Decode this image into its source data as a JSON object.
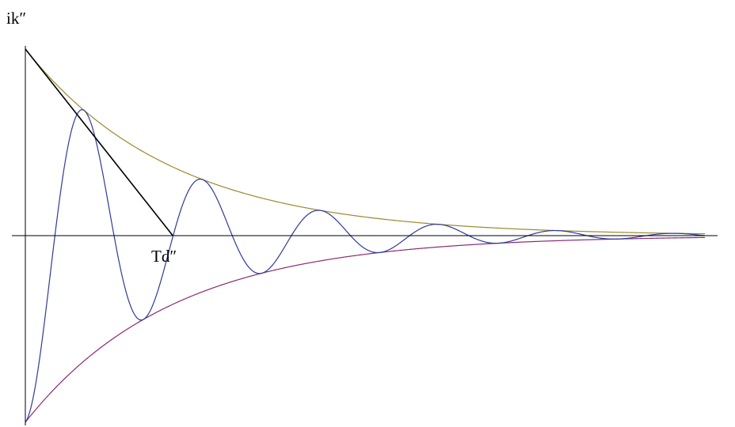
{
  "chart_data": {
    "type": "line",
    "title": "",
    "ylabel": "ik″",
    "xlabel": "",
    "annotation": "Td″",
    "x_range": [
      0,
      10
    ],
    "y_range": [
      -1,
      1
    ],
    "time_constant": 2.17,
    "oscillation_period": 1.74,
    "tangent": {
      "x": [
        0,
        2.17
      ],
      "y": [
        1,
        0
      ]
    },
    "series": [
      {
        "key": "upper_envelope",
        "color": "#9a8a2c",
        "x": [
          0,
          0.5,
          1,
          1.5,
          2,
          2.5,
          3,
          3.5,
          4,
          4.5,
          5,
          5.5,
          6,
          6.5,
          7,
          7.5,
          8,
          8.5,
          9,
          9.5,
          10
        ],
        "y": [
          1.0,
          0.79,
          0.63,
          0.5,
          0.4,
          0.32,
          0.25,
          0.2,
          0.16,
          0.13,
          0.1,
          0.08,
          0.06,
          0.05,
          0.04,
          0.03,
          0.025,
          0.02,
          0.016,
          0.013,
          0.01
        ]
      },
      {
        "key": "lower_envelope",
        "color": "#8b2a6e",
        "x": [
          0,
          0.5,
          1,
          1.5,
          2,
          2.5,
          3,
          3.5,
          4,
          4.5,
          5,
          5.5,
          6,
          6.5,
          7,
          7.5,
          8,
          8.5,
          9,
          9.5,
          10
        ],
        "y": [
          -1.0,
          -0.79,
          -0.63,
          -0.5,
          -0.4,
          -0.32,
          -0.25,
          -0.2,
          -0.16,
          -0.13,
          -0.1,
          -0.08,
          -0.06,
          -0.05,
          -0.04,
          -0.03,
          -0.025,
          -0.02,
          -0.016,
          -0.013,
          -0.01
        ]
      },
      {
        "key": "oscillation",
        "color": "#2f3a9c",
        "x": [
          0,
          0.45,
          0.98,
          1.45,
          1.88,
          2.45,
          2.95,
          3.5,
          4.02,
          4.5,
          5.08,
          5.55,
          6.02,
          6.45,
          6.95,
          7.5,
          7.95,
          8.45,
          8.95,
          9.45,
          10
        ],
        "y": [
          -1.0,
          0.0,
          0.72,
          0.0,
          -0.52,
          0.0,
          0.37,
          0.0,
          -0.26,
          0.0,
          0.19,
          0.0,
          -0.13,
          0.0,
          0.1,
          0.0,
          -0.07,
          0.0,
          0.05,
          0.0,
          -0.035
        ]
      }
    ]
  }
}
